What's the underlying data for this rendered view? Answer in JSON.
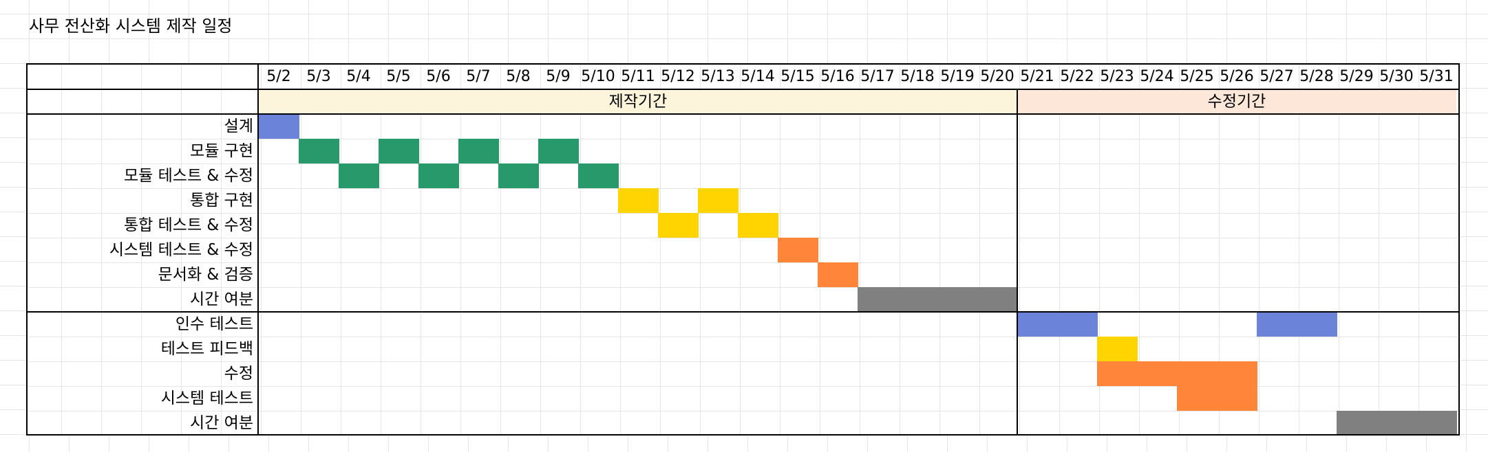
{
  "sheet": {
    "title": "사무 전산화 시스템 제작 일정"
  },
  "colors": {
    "design": "#6b83d9",
    "module": "#27996b",
    "integration": "#ffd400",
    "system": "#ff853b",
    "slack": "#808080",
    "production_band": "#fcf5dc",
    "revision_band": "#fde7d9"
  },
  "dates": [
    "5/2",
    "5/3",
    "5/4",
    "5/5",
    "5/6",
    "5/7",
    "5/8",
    "5/9",
    "5/10",
    "5/11",
    "5/12",
    "5/13",
    "5/14",
    "5/15",
    "5/16",
    "5/17",
    "5/18",
    "5/19",
    "5/20",
    "5/21",
    "5/22",
    "5/23",
    "5/24",
    "5/25",
    "5/26",
    "5/27",
    "5/28",
    "5/29",
    "5/30",
    "5/31"
  ],
  "periods": [
    {
      "label": "제작기간",
      "start": "5/2",
      "end": "5/20",
      "color": "#fcf5dc"
    },
    {
      "label": "수정기간",
      "start": "5/21",
      "end": "5/31",
      "color": "#fde7d9"
    }
  ],
  "tasks": [
    {
      "label": "설계",
      "color": "#6b83d9",
      "days": [
        "5/2"
      ]
    },
    {
      "label": "모듈 구현",
      "color": "#27996b",
      "days": [
        "5/3",
        "5/5",
        "5/7",
        "5/9"
      ]
    },
    {
      "label": "모듈 테스트 & 수정",
      "color": "#27996b",
      "days": [
        "5/4",
        "5/6",
        "5/8",
        "5/10"
      ]
    },
    {
      "label": "통합 구현",
      "color": "#ffd400",
      "days": [
        "5/11",
        "5/13"
      ]
    },
    {
      "label": "통합 테스트 & 수정",
      "color": "#ffd400",
      "days": [
        "5/12",
        "5/14"
      ]
    },
    {
      "label": "시스템 테스트 & 수정",
      "color": "#ff853b",
      "days": [
        "5/15"
      ]
    },
    {
      "label": "문서화 & 검증",
      "color": "#ff853b",
      "days": [
        "5/16"
      ]
    },
    {
      "label": "시간 여분",
      "color": "#808080",
      "days": [
        "5/17",
        "5/18",
        "5/19",
        "5/20"
      ]
    },
    {
      "label": "인수 테스트",
      "color": "#6b83d9",
      "days": [
        "5/21",
        "5/22",
        "5/27",
        "5/28"
      ]
    },
    {
      "label": "테스트 피드백",
      "color": "#ffd400",
      "days": [
        "5/23"
      ]
    },
    {
      "label": "수정",
      "color": "#ff853b",
      "days": [
        "5/23",
        "5/24",
        "5/25",
        "5/26"
      ]
    },
    {
      "label": "시스템 테스트",
      "color": "#ff853b",
      "days": [
        "5/25",
        "5/26"
      ]
    },
    {
      "label": "시간 여분",
      "color": "#808080",
      "days": [
        "5/29",
        "5/30",
        "5/31"
      ]
    }
  ]
}
